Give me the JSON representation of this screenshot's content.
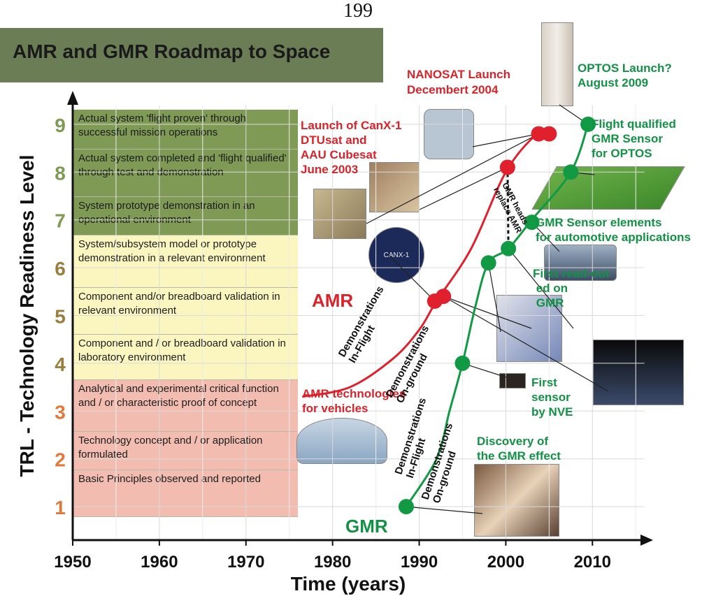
{
  "page_number": "199",
  "title": "AMR and GMR Roadmap to Space",
  "colors": {
    "title_bg": "#6b7d55",
    "green_band": "#7f9a55",
    "yellow_band": "#fbf6bf",
    "red_band": "#f2bdb0",
    "amr": "#e0212d",
    "gmr": "#119a43",
    "amr_text": "#d9232a",
    "gmr_text": "#129245"
  },
  "trl_descriptions": [
    {
      "level": 9,
      "text": "Actual system 'flight proven' through successful mission operations"
    },
    {
      "level": 8,
      "text": "Actual system completed and 'flight qualified' through test and demonstration"
    },
    {
      "level": 7,
      "text": "System prototype demonstration in an operational environment"
    },
    {
      "level": 6,
      "text": "System/subsystem model or prototype demonstration in a relevant environment"
    },
    {
      "level": 5,
      "text": "Component and/or breadboard validation in relevant environment"
    },
    {
      "level": 4,
      "text": "Component and / or breadboard validation in laboratory environment"
    },
    {
      "level": 3,
      "text": "Analytical and experimental critical function and / or characteristic proof of concept"
    },
    {
      "level": 2,
      "text": "Technology concept and / or application formulated"
    },
    {
      "level": 1,
      "text": "Basic Principles observed and reported"
    }
  ],
  "annotations": {
    "nanosat": "NANOSAT Launch\nDecembert 2004",
    "optos": "OPTOS Launch?\nAugust 2009",
    "canx": "Launch of CanX-1\nDTUsat and\nAAU Cubesat\nJune 2003",
    "flight_qualified": "Flight qualified\nGMR Sensor\nfor OPTOS",
    "gmr_heads": "GMR heads\nreplace AMR",
    "gmr_sensor_elements": "GMR Sensor elements\nfor automotive applications",
    "first_readout": "First read-out\n      ed on\n         GMR",
    "amr_tech": "AMR technologies\nfor vehicles",
    "first_sensor": "First\nsensor\nby NVE",
    "discovery": "Discovery of\nthe GMR effect",
    "amr_demo_inflight": "Demonstrations\nIn-Flight",
    "amr_demo_onground": "Demonstrations\nOn-ground",
    "gmr_demo_inflight": "Demonstrations\nIn-Flight",
    "gmr_demo_onground": "Demonstrations\nOn-ground",
    "canx_logo": "CANX-1"
  },
  "chart_data": {
    "type": "line",
    "xlabel": "Time (years)",
    "ylabel": "TRL - Technology Readiness Level",
    "xlim": [
      1950,
      2017
    ],
    "ylim": [
      0.3,
      9.7
    ],
    "xticks": [
      1950,
      1960,
      1970,
      1980,
      1990,
      2000,
      2010
    ],
    "yticks": [
      1,
      2,
      3,
      4,
      5,
      6,
      7,
      8,
      9
    ],
    "grid": true,
    "series": [
      {
        "name": "AMR",
        "curve": [
          [
            1976.5,
            3.3
          ],
          [
            1982,
            3.5
          ],
          [
            1987,
            4.1
          ],
          [
            1990,
            4.7
          ],
          [
            1992,
            5.3
          ],
          [
            1996,
            6.4
          ],
          [
            2000,
            8.0
          ],
          [
            2003.6,
            8.8
          ],
          [
            2005,
            8.8
          ]
        ],
        "points": [
          [
            1991.8,
            5.3
          ],
          [
            1992.8,
            5.4
          ],
          [
            2000.2,
            8.1
          ],
          [
            2003.8,
            8.8
          ],
          [
            2005,
            8.8
          ]
        ]
      },
      {
        "name": "GMR",
        "curve": [
          [
            1988.5,
            1.0
          ],
          [
            1992,
            2.0
          ],
          [
            1993.5,
            3.0
          ],
          [
            1995,
            4.0
          ],
          [
            1996.5,
            5.2
          ],
          [
            1998,
            6.1
          ],
          [
            2000.3,
            6.4
          ],
          [
            2003,
            7.0
          ],
          [
            2007.5,
            8.0
          ],
          [
            2009.5,
            9.0
          ]
        ],
        "points": [
          [
            1988.5,
            1.0
          ],
          [
            1995,
            4.0
          ],
          [
            1998,
            6.1
          ],
          [
            2000.3,
            6.4
          ],
          [
            2003,
            6.95
          ],
          [
            2007.5,
            8.0
          ],
          [
            2009.5,
            9.0
          ]
        ]
      }
    ]
  }
}
